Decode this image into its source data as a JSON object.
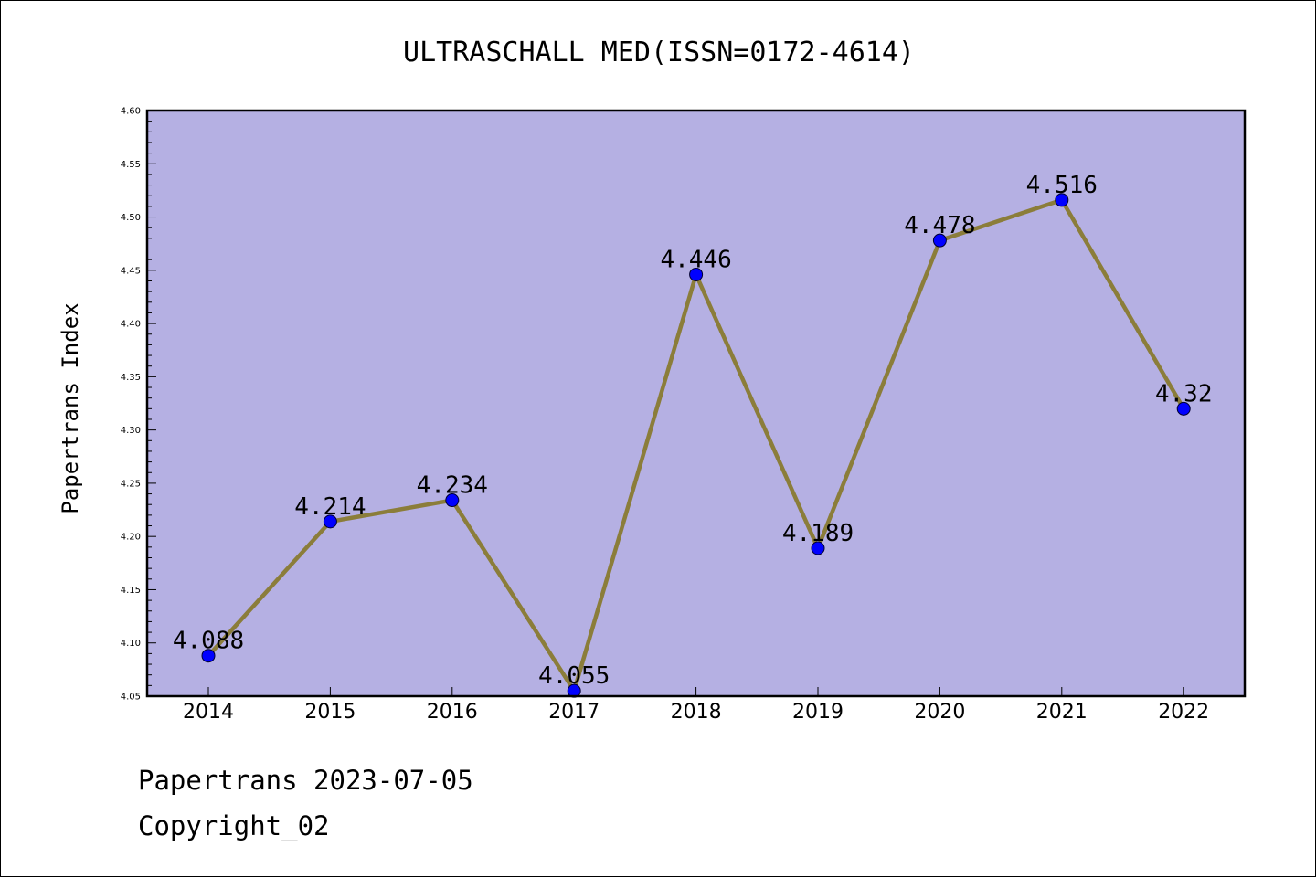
{
  "chart_data": {
    "type": "line",
    "title": "ULTRASCHALL MED(ISSN=0172-4614)",
    "xlabel": "",
    "ylabel": "Papertrans Index",
    "categories": [
      "2014",
      "2015",
      "2016",
      "2017",
      "2018",
      "2019",
      "2020",
      "2021",
      "2022"
    ],
    "series": [
      {
        "values": [
          4.088,
          4.214,
          4.234,
          4.055,
          4.446,
          4.189,
          4.478,
          4.516,
          4.32
        ],
        "labels": [
          "4.088",
          "4.214",
          "4.234",
          "4.055",
          "4.446",
          "4.189",
          "4.478",
          "4.516",
          "4.32"
        ]
      }
    ],
    "ylim": [
      4.05,
      4.6
    ],
    "yticks": [
      "4.05",
      "4.10",
      "4.15",
      "4.20",
      "4.25",
      "4.30",
      "4.35",
      "4.40",
      "4.45",
      "4.50",
      "4.55",
      "4.60"
    ],
    "grid": false,
    "legend": "none",
    "colors": {
      "plot_background": "#b5b0e3",
      "line": "#8b7d3a",
      "marker": "#0000ff"
    }
  },
  "footer": {
    "date_line": "Papertrans 2023-07-05",
    "copyright_line": "Copyright_02"
  }
}
